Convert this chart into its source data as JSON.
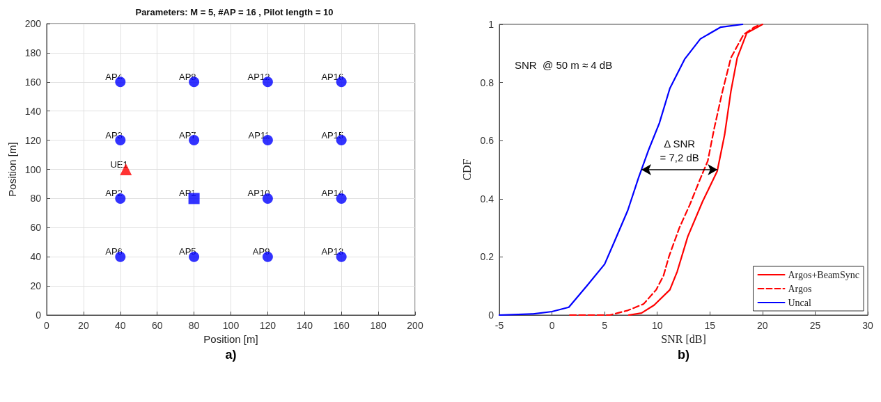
{
  "chart_data": [
    {
      "type": "scatter",
      "title": "Parameters: M = 5, #AP = 16 , Pilot length = 10",
      "xlabel": "Position [m]",
      "ylabel": "Position [m]",
      "xlim": [
        0,
        200
      ],
      "ylim": [
        0,
        200
      ],
      "xticks": [
        0,
        20,
        40,
        60,
        80,
        100,
        120,
        140,
        160,
        180,
        200
      ],
      "yticks": [
        0,
        20,
        40,
        60,
        80,
        100,
        120,
        140,
        160,
        180,
        200
      ],
      "grid": true,
      "series": [
        {
          "marker": "circle",
          "color": "#0000ff",
          "x": [
            40,
            40,
            40,
            80,
            40,
            80,
            80,
            120,
            120,
            120,
            120,
            160,
            160,
            160,
            160
          ],
          "values": [
            80,
            120,
            160,
            40,
            40,
            120,
            160,
            40,
            80,
            120,
            160,
            40,
            80,
            120,
            160
          ]
        },
        {
          "marker": "square",
          "color": "#0000ff",
          "x": [
            80
          ],
          "values": [
            80
          ]
        },
        {
          "marker": "triangle",
          "color": "#ff0000",
          "x": [
            43
          ],
          "values": [
            100
          ]
        }
      ],
      "annotations": [
        {
          "text": "AP1",
          "x": 80,
          "y": 80
        },
        {
          "text": "AP2",
          "x": 40,
          "y": 80
        },
        {
          "text": "AP3",
          "x": 40,
          "y": 120
        },
        {
          "text": "AP4",
          "x": 40,
          "y": 160
        },
        {
          "text": "AP5",
          "x": 80,
          "y": 40
        },
        {
          "text": "AP6",
          "x": 40,
          "y": 40
        },
        {
          "text": "AP7",
          "x": 80,
          "y": 120
        },
        {
          "text": "AP8",
          "x": 80,
          "y": 160
        },
        {
          "text": "AP9",
          "x": 120,
          "y": 40
        },
        {
          "text": "AP10",
          "x": 120,
          "y": 80
        },
        {
          "text": "AP11",
          "x": 120,
          "y": 120
        },
        {
          "text": "AP12",
          "x": 120,
          "y": 160
        },
        {
          "text": "AP13",
          "x": 160,
          "y": 40
        },
        {
          "text": "AP14",
          "x": 160,
          "y": 80
        },
        {
          "text": "AP15",
          "x": 160,
          "y": 120
        },
        {
          "text": "AP16",
          "x": 160,
          "y": 160
        },
        {
          "text": "UE1",
          "x": 43,
          "y": 100
        },
        "a)"
      ]
    },
    {
      "type": "line",
      "xlabel": "SNR [dB]",
      "ylabel": "CDF",
      "xlim": [
        -5,
        30
      ],
      "ylim": [
        0,
        1
      ],
      "xticks": [
        -5,
        0,
        5,
        10,
        15,
        20,
        25,
        30
      ],
      "yticks": [
        0,
        0.2,
        0.4,
        0.6,
        0.8,
        1
      ],
      "legend": "bottom right",
      "series": [
        {
          "name": "Argos+BeamSync",
          "color": "#ff0000",
          "line_style": "solid",
          "x": [
            7.3,
            8.5,
            9.7,
            11.2,
            11.9,
            12.9,
            14.3,
            15.7,
            16.4,
            17.0,
            17.6,
            18.5,
            19.5,
            20.0
          ],
          "values": [
            0,
            0.007,
            0.034,
            0.087,
            0.15,
            0.27,
            0.39,
            0.495,
            0.62,
            0.77,
            0.885,
            0.97,
            0.99,
            1
          ]
        },
        {
          "name": "Argos",
          "color": "#ff0000",
          "line_style": "dashed",
          "x": [
            1.7,
            5.5,
            7.2,
            8.7,
            9.9,
            10.6,
            11.1,
            12.1,
            13.1,
            14.1,
            14.8,
            15.4,
            16.2,
            17.0,
            18.2,
            19.2,
            19.8
          ],
          "values": [
            0,
            0,
            0.016,
            0.038,
            0.087,
            0.136,
            0.2,
            0.3,
            0.38,
            0.47,
            0.53,
            0.64,
            0.77,
            0.885,
            0.965,
            0.99,
            1
          ]
        },
        {
          "name": "Uncal",
          "color": "#0000ff",
          "line_style": "solid",
          "x": [
            -5,
            -1.8,
            0,
            1.6,
            3.3,
            5.0,
            5.9,
            7.2,
            8.2,
            9.2,
            10.2,
            11.2,
            12.6,
            14.1,
            16.0,
            18.1
          ],
          "values": [
            0,
            0.004,
            0.012,
            0.027,
            0.1,
            0.175,
            0.25,
            0.36,
            0.47,
            0.57,
            0.66,
            0.78,
            0.88,
            0.95,
            0.99,
            1
          ]
        }
      ],
      "annotations": [
        "Δ SNR\n= 7,2 dB",
        "SNR  @ 50 m ≈ 4 dB",
        "b)"
      ]
    }
  ]
}
